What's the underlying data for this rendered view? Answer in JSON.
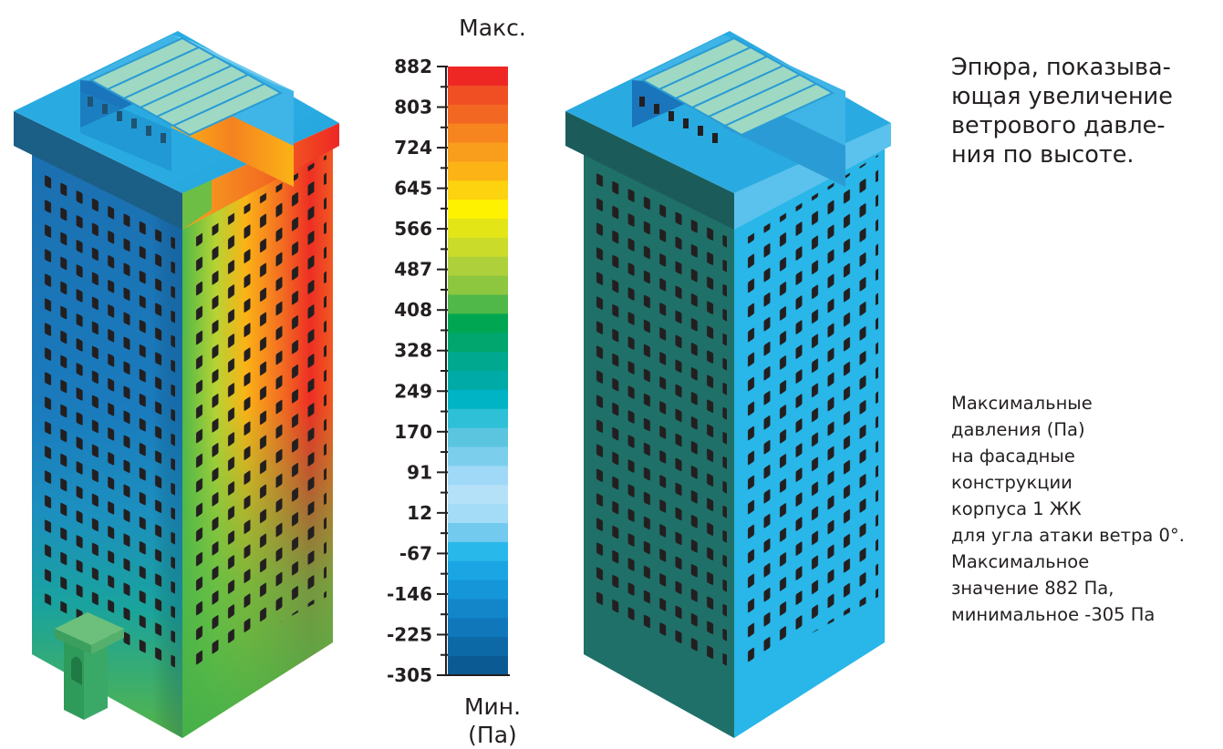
{
  "legend": {
    "max_label": "Макс.",
    "min_label_line1": "Мин.",
    "min_label_line2": "(Па)",
    "ticks": [
      "882",
      "803",
      "724",
      "645",
      "566",
      "487",
      "408",
      "328",
      "249",
      "170",
      "91",
      "12",
      "-67",
      "-146",
      "-225",
      "-305"
    ],
    "max_value": 882,
    "min_value": -305,
    "colors": [
      "#ee2724",
      "#f04e23",
      "#f26722",
      "#f6841f",
      "#f99d1c",
      "#fbb316",
      "#fdd20e",
      "#fff200",
      "#e4e517",
      "#cadb2a",
      "#aed13b",
      "#8dc63f",
      "#50b848",
      "#00a651",
      "#00a66d",
      "#00a88f",
      "#00aaa6",
      "#00b4c5",
      "#2ec0d6",
      "#5bc5e0",
      "#7ccfec",
      "#a0d9f7",
      "#b5e1f8",
      "#a4dbf6",
      "#72cbef",
      "#29b8ea",
      "#1ba5e3",
      "#1496d8",
      "#1286c9",
      "#1077bb",
      "#0d68a6",
      "#0b5a93"
    ]
  },
  "title": {
    "lines": [
      "Эпюра, показыва-",
      "ющая увеличение",
      "ветрового давле-",
      "ния по высоте."
    ]
  },
  "caption": {
    "lines": [
      "Максимальные",
      "давления (Па)",
      "на фасадные",
      "конструкции",
      "корпуса 1 ЖК",
      "для угла атаки ветра 0°.",
      "Максимальное",
      "значение 882 Па,",
      "минимальное -305 Па"
    ]
  },
  "colors": {
    "roof_top": "#29abe2",
    "left_wall_plain": "#1f7068",
    "right_wall_plain": "#29b6e8",
    "window": "#231f20"
  }
}
